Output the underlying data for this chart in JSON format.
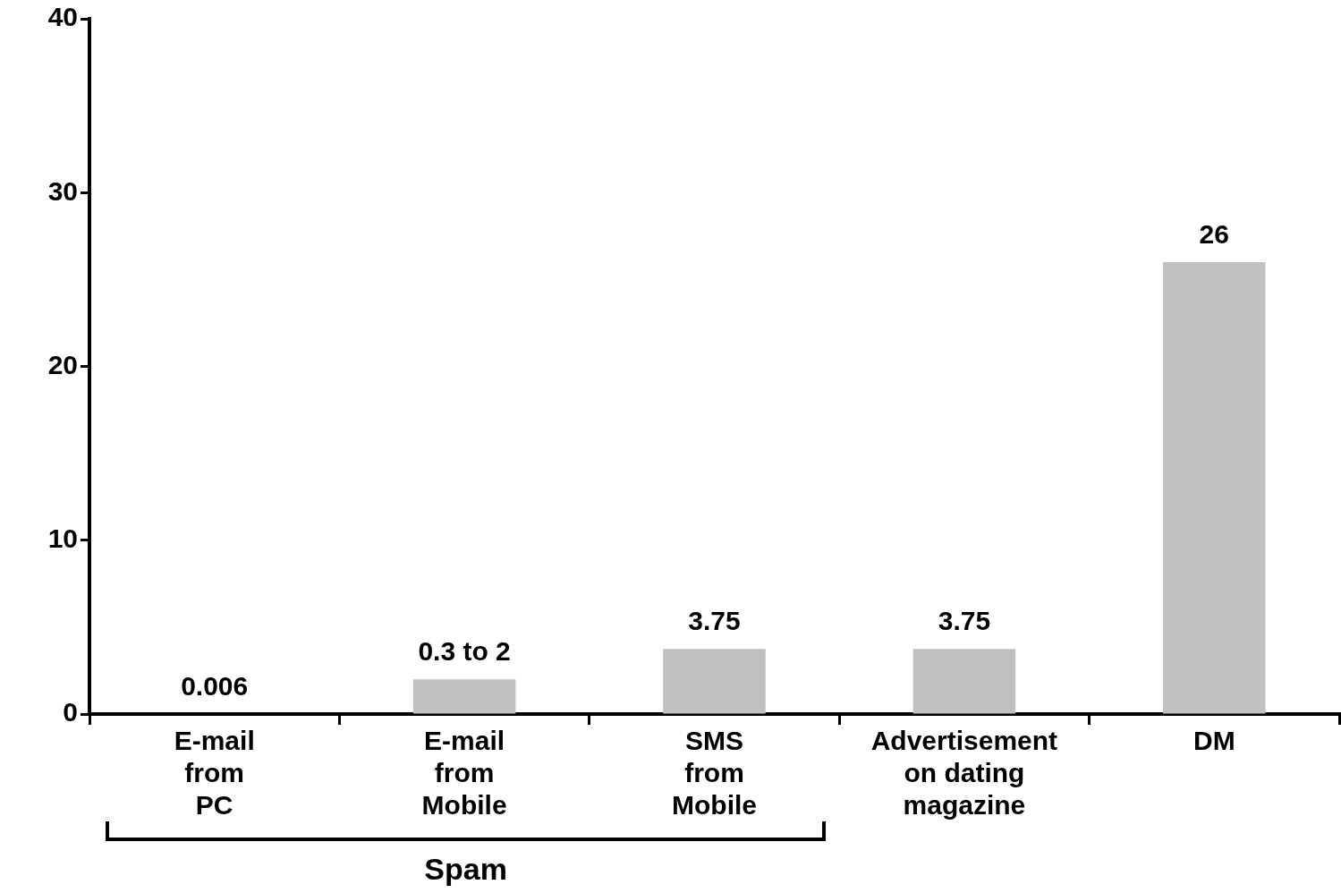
{
  "chart_data": {
    "type": "bar",
    "categories": [
      "E-mail\nfrom\nPC",
      "E-mail\nfrom\nMobile",
      "SMS\nfrom\nMobile",
      "Advertisement\non dating\nmagazine",
      "DM"
    ],
    "values": [
      0.006,
      2,
      3.75,
      3.75,
      26
    ],
    "colors": [
      "#000000",
      "#c0c0c0",
      "#c0c0c0",
      "#c0c0c0",
      "#c0c0c0"
    ],
    "value_labels": [
      "0.006",
      "0.3 to 2",
      "3.75",
      "3.75",
      "26"
    ],
    "ylim": [
      0,
      40
    ],
    "yticks": [
      0,
      10,
      20,
      30,
      40
    ],
    "grid": false,
    "legend": false,
    "annotations": [
      "Spam"
    ]
  }
}
